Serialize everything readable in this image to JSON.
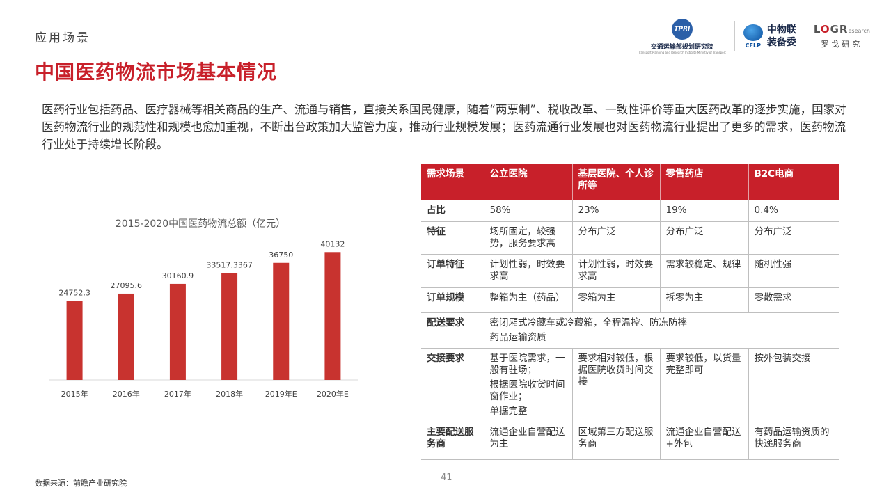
{
  "header": {
    "section_label": "应用场景",
    "title": "中国医药物流市场基本情况"
  },
  "logos": {
    "tpri": {
      "mark": "TPRI",
      "name_cn": "交通运输部规划研究院",
      "name_en": "Transport Planning and Research Institute Ministry of Transport"
    },
    "cflp": {
      "abbr": "CFLP",
      "line1": "中物联",
      "line2": "装备委"
    },
    "logr": {
      "l": "L",
      "o": "O",
      "gr": "GR",
      "research": "esearch",
      "name_cn": "罗戈研究"
    }
  },
  "intro": "医药行业包括药品、医疗器械等相关商品的生产、流通与销售，直接关系国民健康，随着“两票制”、税收改革、一致性评价等重大医药改革的逐步实施，国家对医药物流行业的规范性和规模也愈加重视，不断出台政策加大监管力度，推动行业规模发展；医药流通行业发展也对医药物流行业提出了更多的需求，医药物流行业处于持续增长阶段。",
  "chart_data": {
    "type": "bar",
    "title": "2015-2020中国医药物流总额（亿元）",
    "categories": [
      "2015年",
      "2016年",
      "2017年",
      "2018年",
      "2019年E",
      "2020年E"
    ],
    "values": [
      24752.3,
      27095.6,
      30160.9,
      33517.3367,
      36750,
      40132
    ],
    "value_labels": [
      "24752.3",
      "27095.6",
      "30160.9",
      "33517.3367",
      "36750",
      "40132"
    ],
    "ylim": [
      0,
      45000
    ],
    "grid": false,
    "color": "#c8332f"
  },
  "table": {
    "headers": [
      "需求场景",
      "公立医院",
      "基层医院、个人诊所等",
      "零售药店",
      "B2C电商"
    ],
    "rows": [
      {
        "label": "占比",
        "cells": [
          [
            "58%"
          ],
          [
            "23%"
          ],
          [
            "19%"
          ],
          [
            "0.4%"
          ]
        ]
      },
      {
        "label": "特征",
        "cells": [
          [
            "场所固定，较强势，服务要求高"
          ],
          [
            "分布广泛"
          ],
          [
            "分布广泛"
          ],
          [
            "分布广泛"
          ]
        ]
      },
      {
        "label": "订单特征",
        "cells": [
          [
            "计划性弱，时效要求高"
          ],
          [
            "计划性弱，时效要求高"
          ],
          [
            "需求较稳定、规律"
          ],
          [
            "随机性强"
          ]
        ]
      },
      {
        "label": "订单规模",
        "cells": [
          [
            "整箱为主（药品）"
          ],
          [
            "零箱为主"
          ],
          [
            "拆零为主"
          ],
          [
            "零散需求"
          ]
        ]
      },
      {
        "label": "配送要求",
        "span": true,
        "cells": [
          [
            "密闭厢式冷藏车或冷藏箱，全程温控、防冻防摔",
            "药品运输资质"
          ]
        ]
      },
      {
        "label": "交接要求",
        "cells": [
          [
            "基于医院需求，一般有驻场；",
            "根据医院收货时间窗作业；",
            "单据完整"
          ],
          [
            "要求相对较低，根据医院收货时间交接"
          ],
          [
            "要求较低，以货量完整即可"
          ],
          [
            "按外包装交接"
          ]
        ]
      },
      {
        "label": "主要配送服务商",
        "cells": [
          [
            "流通企业自营配送为主"
          ],
          [
            "区域第三方配送服务商"
          ],
          [
            "流通企业自营配送+外包"
          ],
          [
            "有药品运输资质的快递服务商"
          ]
        ]
      }
    ]
  },
  "footer": {
    "source": "数据来源：前瞻产业研究院",
    "page": "41"
  }
}
